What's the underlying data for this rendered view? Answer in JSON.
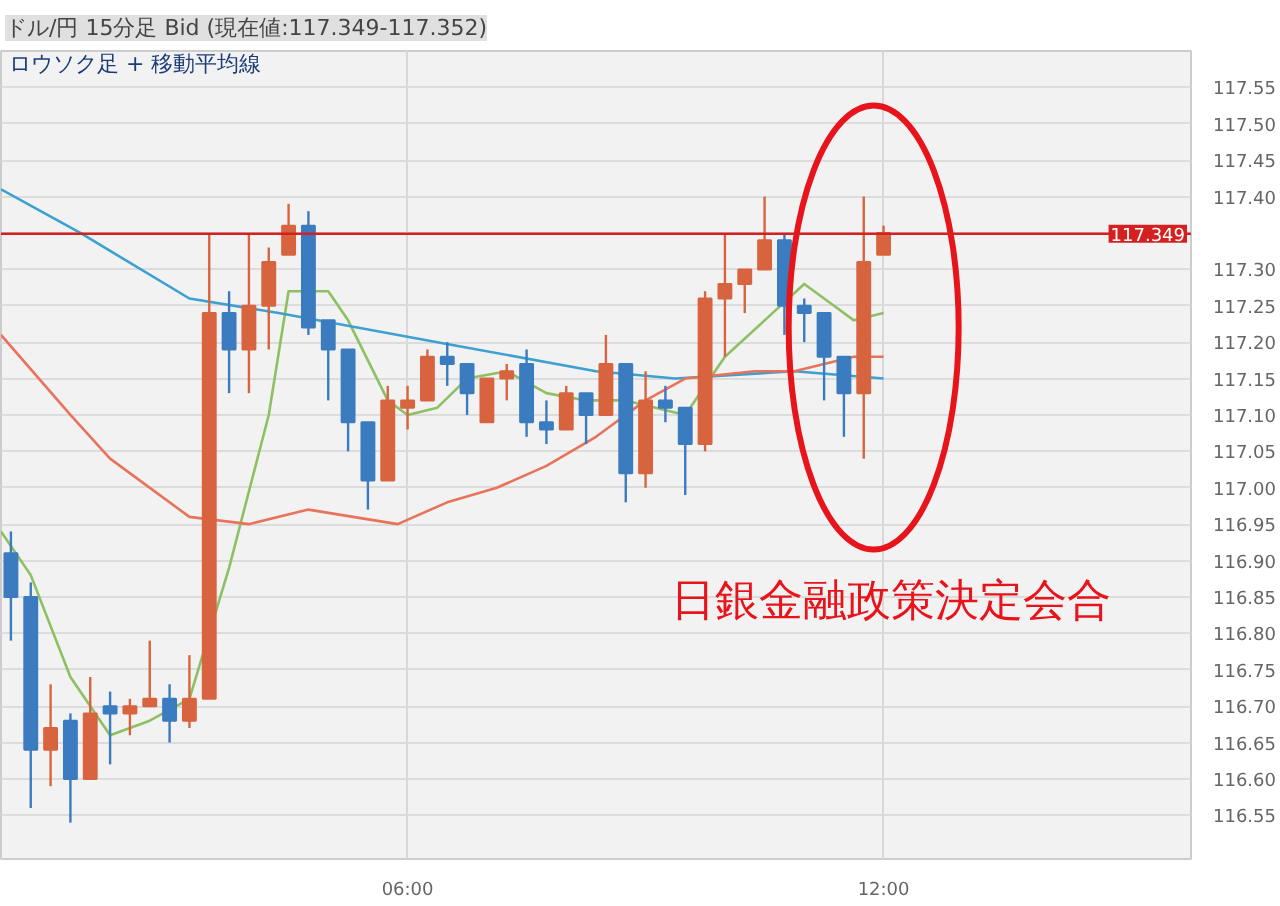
{
  "chart_data": {
    "type": "candlestick",
    "title": "ドル/円 15分足 Bid (現在値:117.349-117.352)",
    "subtitle": "ロウソク足 + 移動平均線",
    "x": [
      1.0,
      1.25,
      1.5,
      1.75,
      2.0,
      2.25,
      2.5,
      2.75,
      3.0,
      3.25,
      3.5,
      3.75,
      4.0,
      4.25,
      4.5,
      4.75,
      5.0,
      5.25,
      5.5,
      5.75,
      6.0,
      6.25,
      6.5,
      6.75,
      7.0,
      7.25,
      7.5,
      7.75,
      8.0,
      8.25,
      8.5,
      8.75,
      9.0,
      9.25,
      9.5,
      9.75,
      10.0,
      10.25,
      10.5,
      10.75,
      11.0,
      11.25,
      11.5,
      11.75,
      12.0
    ],
    "ohlc": [
      [
        116.91,
        116.94,
        116.79,
        116.85
      ],
      [
        116.85,
        116.87,
        116.56,
        116.64
      ],
      [
        116.64,
        116.73,
        116.59,
        116.67
      ],
      [
        116.68,
        116.69,
        116.54,
        116.6
      ],
      [
        116.6,
        116.74,
        116.6,
        116.69
      ],
      [
        116.7,
        116.72,
        116.62,
        116.69
      ],
      [
        116.69,
        116.71,
        116.66,
        116.7
      ],
      [
        116.7,
        116.79,
        116.7,
        116.71
      ],
      [
        116.71,
        116.73,
        116.65,
        116.68
      ],
      [
        116.68,
        116.77,
        116.67,
        116.71
      ],
      [
        116.71,
        117.35,
        116.71,
        117.24
      ],
      [
        117.24,
        117.27,
        117.13,
        117.19
      ],
      [
        117.19,
        117.35,
        117.13,
        117.25
      ],
      [
        117.25,
        117.33,
        117.19,
        117.31
      ],
      [
        117.32,
        117.39,
        117.32,
        117.36
      ],
      [
        117.36,
        117.38,
        117.21,
        117.22
      ],
      [
        117.23,
        117.23,
        117.12,
        117.19
      ],
      [
        117.19,
        117.19,
        117.05,
        117.09
      ],
      [
        117.09,
        117.09,
        116.97,
        117.01
      ],
      [
        117.01,
        117.14,
        117.01,
        117.12
      ],
      [
        117.11,
        117.14,
        117.08,
        117.12
      ],
      [
        117.12,
        117.19,
        117.12,
        117.18
      ],
      [
        117.18,
        117.2,
        117.14,
        117.17
      ],
      [
        117.17,
        117.17,
        117.1,
        117.13
      ],
      [
        117.09,
        117.15,
        117.09,
        117.15
      ],
      [
        117.15,
        117.17,
        117.12,
        117.16
      ],
      [
        117.17,
        117.19,
        117.07,
        117.09
      ],
      [
        117.09,
        117.12,
        117.06,
        117.08
      ],
      [
        117.08,
        117.14,
        117.08,
        117.13
      ],
      [
        117.13,
        117.13,
        117.06,
        117.1
      ],
      [
        117.1,
        117.21,
        117.1,
        117.17
      ],
      [
        117.17,
        117.17,
        116.98,
        117.02
      ],
      [
        117.02,
        117.16,
        117.0,
        117.12
      ],
      [
        117.12,
        117.14,
        117.09,
        117.11
      ],
      [
        117.11,
        117.11,
        116.99,
        117.06
      ],
      [
        117.06,
        117.27,
        117.05,
        117.26
      ],
      [
        117.26,
        117.35,
        117.18,
        117.28
      ],
      [
        117.28,
        117.3,
        117.24,
        117.3
      ],
      [
        117.3,
        117.4,
        117.3,
        117.34
      ],
      [
        117.34,
        117.35,
        117.21,
        117.25
      ],
      [
        117.25,
        117.26,
        117.2,
        117.24
      ],
      [
        117.24,
        117.24,
        117.12,
        117.18
      ],
      [
        117.18,
        117.18,
        117.07,
        117.13
      ],
      [
        117.13,
        117.4,
        117.04,
        117.31
      ],
      [
        117.32,
        117.36,
        117.32,
        117.35
      ]
    ],
    "colors": [
      "#3b7bbf",
      "#3b7bbf",
      "#d8643f",
      "#3b7bbf",
      "#d8643f",
      "#3b7bbf",
      "#d8643f",
      "#d8643f",
      "#3b7bbf",
      "#d8643f",
      "#d8643f",
      "#3b7bbf",
      "#d8643f",
      "#d8643f",
      "#d8643f",
      "#3b7bbf",
      "#3b7bbf",
      "#3b7bbf",
      "#3b7bbf",
      "#d8643f",
      "#d8643f",
      "#d8643f",
      "#3b7bbf",
      "#3b7bbf",
      "#d8643f",
      "#d8643f",
      "#3b7bbf",
      "#3b7bbf",
      "#d8643f",
      "#3b7bbf",
      "#d8643f",
      "#3b7bbf",
      "#d8643f",
      "#3b7bbf",
      "#3b7bbf",
      "#d8643f",
      "#d8643f",
      "#d8643f",
      "#d8643f",
      "#3b7bbf",
      "#3b7bbf",
      "#3b7bbf",
      "#3b7bbf",
      "#d8643f",
      "#d8643f"
    ],
    "series": [
      {
        "type": "line",
        "color": "#8cc063",
        "x": [
          0.875,
          1.25,
          1.75,
          2.25,
          2.75,
          3.25,
          3.75,
          4.25,
          4.5,
          5.0,
          5.25,
          5.75,
          6.0,
          6.375,
          6.75,
          7.25,
          7.75,
          8.25,
          8.75,
          9.5,
          10.0,
          10.5,
          11.0,
          11.375,
          11.625,
          12.0
        ],
        "values": [
          116.94,
          116.88,
          116.74,
          116.66,
          116.68,
          116.71,
          116.89,
          117.1,
          117.27,
          117.27,
          117.23,
          117.12,
          117.1,
          117.11,
          117.15,
          117.16,
          117.13,
          117.12,
          117.12,
          117.1,
          117.18,
          117.23,
          117.28,
          117.25,
          117.23,
          117.24
        ]
      },
      {
        "type": "line",
        "color": "#3ca0d0",
        "x": [
          0.875,
          1.875,
          3.25,
          4.375,
          6.375,
          8.375,
          9.375,
          10.875,
          12.0
        ],
        "values": [
          117.41,
          117.35,
          117.26,
          117.24,
          117.2,
          117.16,
          117.15,
          117.16,
          117.15
        ]
      },
      {
        "type": "line",
        "color": "#e8735a",
        "x": [
          0.875,
          1.75,
          2.25,
          3.25,
          4.0,
          4.75,
          5.875,
          6.5,
          7.125,
          7.75,
          8.375,
          9.0,
          9.5,
          10.375,
          10.875,
          11.625,
          12.0
        ],
        "values": [
          117.21,
          117.1,
          117.04,
          116.96,
          116.95,
          116.97,
          116.95,
          116.98,
          117.0,
          117.03,
          117.07,
          117.12,
          117.15,
          117.16,
          117.16,
          117.18,
          117.18
        ]
      }
    ],
    "xlim": [
      0.875,
      15.875
    ],
    "ylim": [
      116.49,
      117.6
    ],
    "xticks": [
      {
        "value": 6,
        "label": "06:00"
      },
      {
        "value": 12,
        "label": "12:00"
      }
    ],
    "yticks": [
      116.55,
      {
        "value": 116.6,
        "label": "116.60"
      },
      116.65,
      {
        "value": 116.7,
        "label": "116.70"
      },
      116.75,
      {
        "value": 116.8,
        "label": "116.80"
      },
      116.85,
      {
        "value": 116.9,
        "label": "116.90"
      },
      116.95,
      {
        "value": 117.0,
        "label": "117.00"
      },
      117.05,
      {
        "value": 117.1,
        "label": "117.10"
      },
      117.15,
      {
        "value": 117.2,
        "label": "117.20"
      },
      117.25,
      {
        "value": 117.3,
        "label": "117.30"
      },
      {
        "value": 117.35,
        "label": null
      },
      {
        "value": 117.4,
        "label": "117.40"
      },
      117.45,
      {
        "value": 117.5,
        "label": "117.50"
      },
      117.55
    ],
    "ref_lines": [
      {
        "axis": "y",
        "value": 117.349,
        "label": "117.349",
        "color": "#d42020"
      }
    ],
    "annotations": [
      "日銀金融政策決定会合"
    ],
    "grid": true
  }
}
